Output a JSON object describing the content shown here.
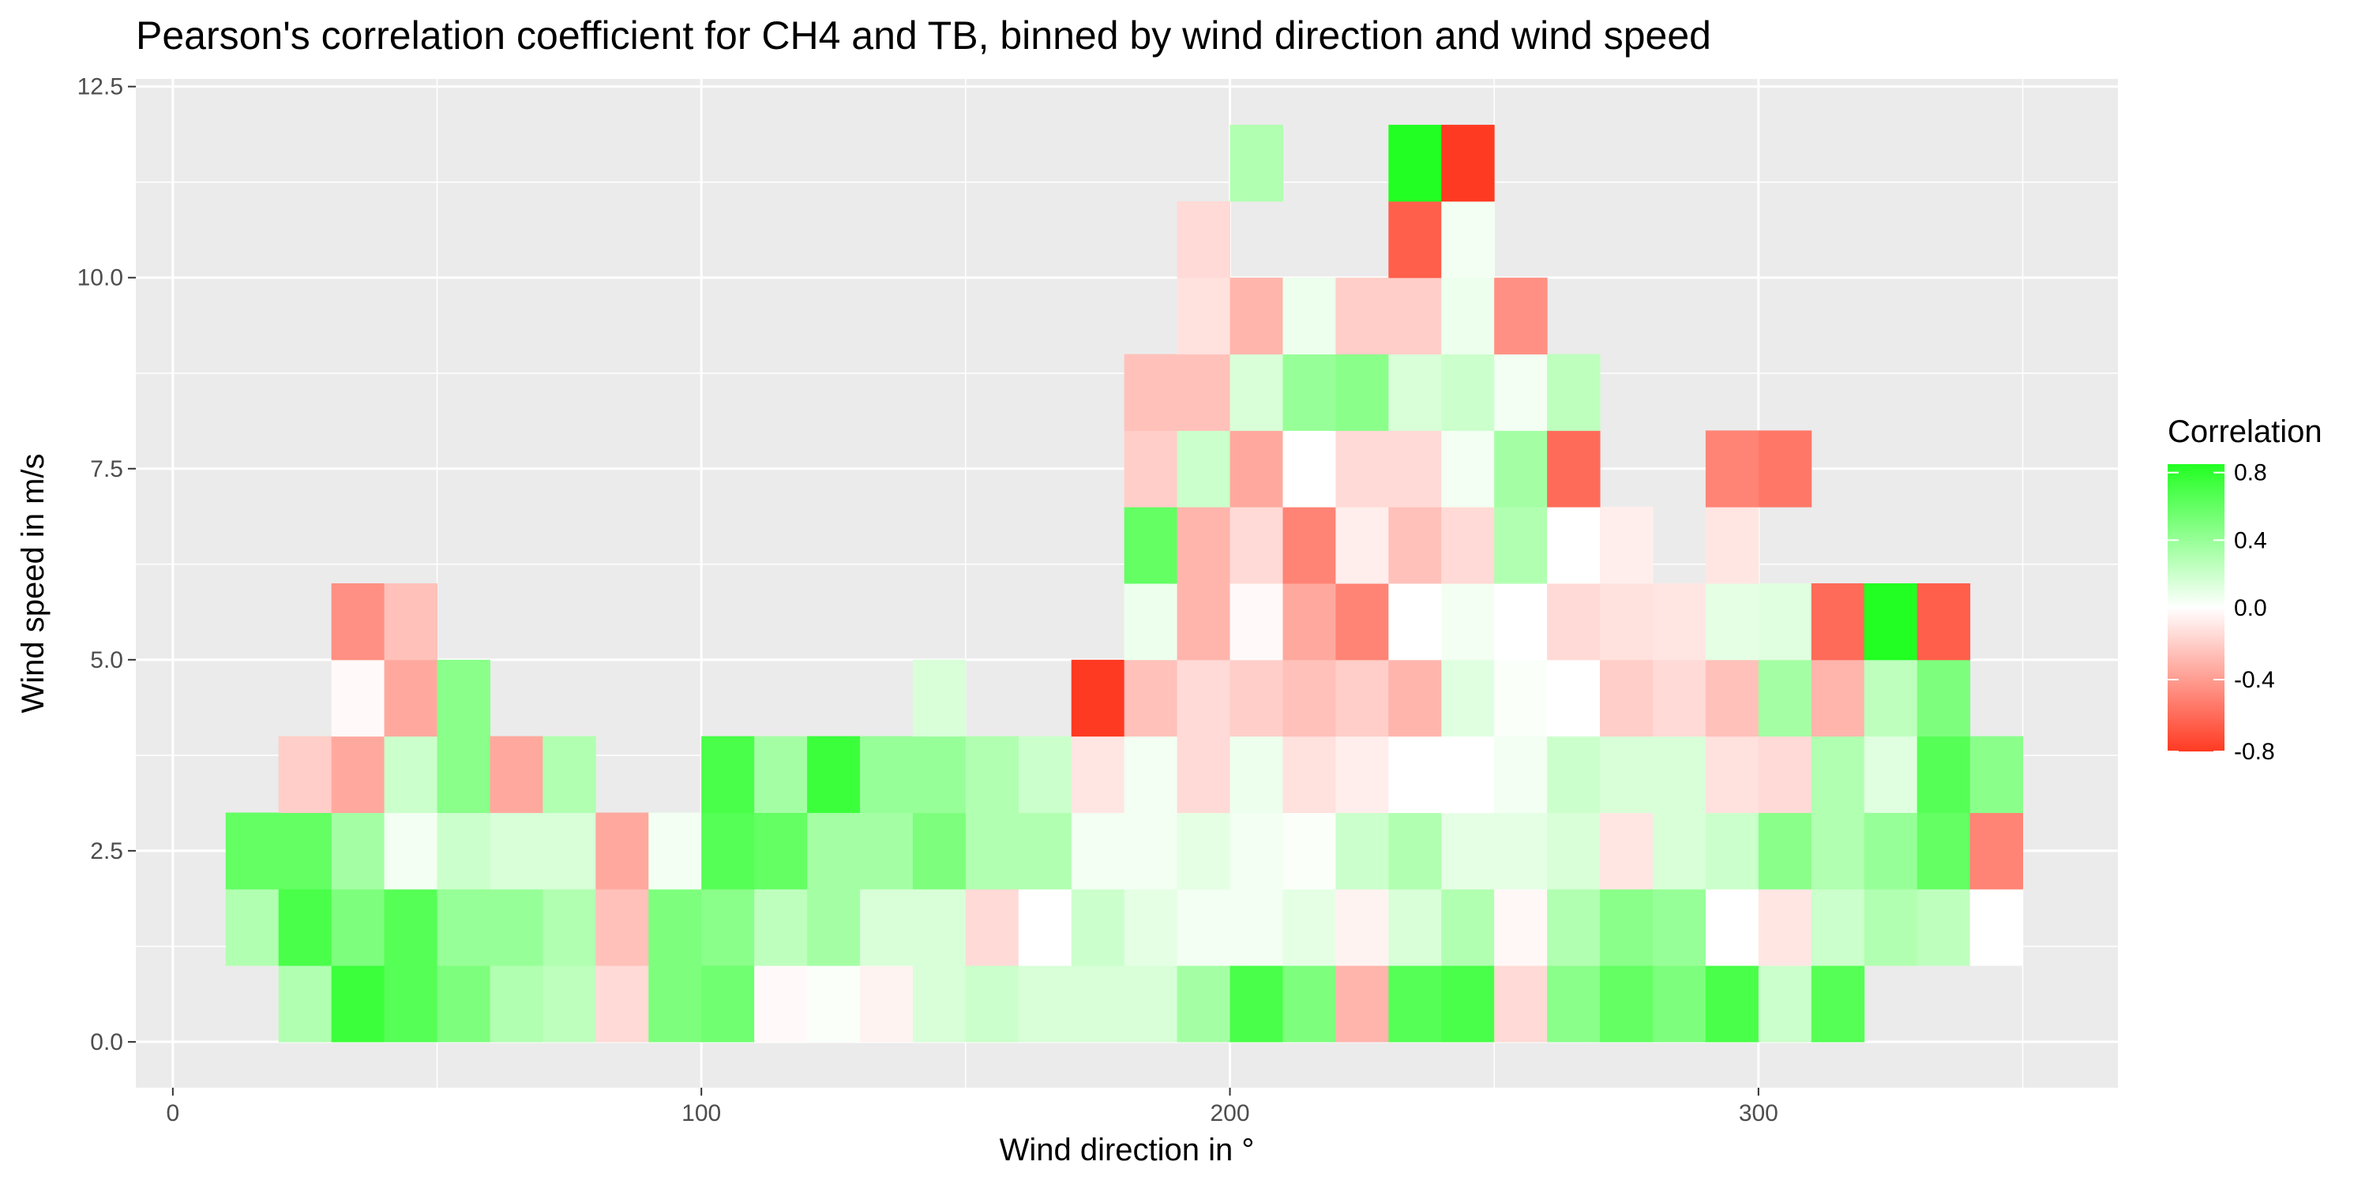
{
  "chart_data": {
    "type": "heatmap",
    "title": "Pearson's correlation coefficient for CH4 and TB, binned by wind direction and wind speed",
    "xlabel": "Wind direction in °",
    "ylabel": "Wind speed in m/s",
    "xlim": [
      -7,
      368
    ],
    "ylim": [
      -0.6,
      12.6
    ],
    "x_ticks": [
      0,
      100,
      200,
      300
    ],
    "x_tick_labels": [
      "0",
      "100",
      "200",
      "300"
    ],
    "y_ticks": [
      0,
      2.5,
      5,
      7.5,
      10,
      12.5
    ],
    "y_tick_labels": [
      "0.0",
      "2.5",
      "5.0",
      "7.5",
      "10.0",
      "12.5"
    ],
    "grid": true,
    "bin_width_x": 10,
    "bin_height_y": 1,
    "legend": {
      "title": "Correlation",
      "position": "right",
      "range": [
        -0.8,
        0.85
      ],
      "ticks": [
        0.8,
        0.4,
        0.0,
        -0.4,
        -0.8
      ],
      "tick_labels": [
        "0.8",
        "0.4",
        "0.0",
        "-0.4",
        "-0.8"
      ],
      "color_low": "#ff3a22",
      "color_mid": "#ffffff",
      "color_high": "#22ff22"
    },
    "cells": [
      [
        25,
        0.5,
        0.3
      ],
      [
        35,
        0.5,
        0.75
      ],
      [
        45,
        0.5,
        0.65
      ],
      [
        55,
        0.5,
        0.5
      ],
      [
        65,
        0.5,
        0.3
      ],
      [
        75,
        0.5,
        0.25
      ],
      [
        85,
        0.5,
        -0.15
      ],
      [
        95,
        0.5,
        0.5
      ],
      [
        105,
        0.5,
        0.55
      ],
      [
        115,
        0.5,
        -0.02
      ],
      [
        125,
        0.5,
        0.02
      ],
      [
        135,
        0.5,
        -0.05
      ],
      [
        145,
        0.5,
        0.15
      ],
      [
        155,
        0.5,
        0.2
      ],
      [
        165,
        0.5,
        0.15
      ],
      [
        175,
        0.5,
        0.15
      ],
      [
        185,
        0.5,
        0.15
      ],
      [
        195,
        0.5,
        0.35
      ],
      [
        205,
        0.5,
        0.7
      ],
      [
        215,
        0.5,
        0.5
      ],
      [
        225,
        0.5,
        -0.3
      ],
      [
        235,
        0.5,
        0.65
      ],
      [
        245,
        0.5,
        0.7
      ],
      [
        255,
        0.5,
        -0.15
      ],
      [
        265,
        0.5,
        0.45
      ],
      [
        275,
        0.5,
        0.6
      ],
      [
        285,
        0.5,
        0.5
      ],
      [
        295,
        0.5,
        0.7
      ],
      [
        305,
        0.5,
        0.2
      ],
      [
        315,
        0.5,
        0.65
      ],
      [
        15,
        1.5,
        0.3
      ],
      [
        25,
        1.5,
        0.7
      ],
      [
        35,
        1.5,
        0.5
      ],
      [
        45,
        1.5,
        0.65
      ],
      [
        55,
        1.5,
        0.4
      ],
      [
        65,
        1.5,
        0.4
      ],
      [
        75,
        1.5,
        0.3
      ],
      [
        85,
        1.5,
        -0.25
      ],
      [
        95,
        1.5,
        0.5
      ],
      [
        105,
        1.5,
        0.45
      ],
      [
        115,
        1.5,
        0.25
      ],
      [
        125,
        1.5,
        0.35
      ],
      [
        135,
        1.5,
        0.15
      ],
      [
        145,
        1.5,
        0.15
      ],
      [
        155,
        1.5,
        -0.15
      ],
      [
        165,
        1.5,
        0.0
      ],
      [
        175,
        1.5,
        0.2
      ],
      [
        185,
        1.5,
        0.1
      ],
      [
        195,
        1.5,
        0.05
      ],
      [
        205,
        1.5,
        0.05
      ],
      [
        215,
        1.5,
        0.1
      ],
      [
        225,
        1.5,
        -0.05
      ],
      [
        235,
        1.5,
        0.15
      ],
      [
        245,
        1.5,
        0.3
      ],
      [
        255,
        1.5,
        -0.03
      ],
      [
        265,
        1.5,
        0.3
      ],
      [
        275,
        1.5,
        0.45
      ],
      [
        285,
        1.5,
        0.4
      ],
      [
        295,
        1.5,
        0.0
      ],
      [
        305,
        1.5,
        -0.1
      ],
      [
        315,
        1.5,
        0.2
      ],
      [
        325,
        1.5,
        0.3
      ],
      [
        335,
        1.5,
        0.25
      ],
      [
        345,
        1.5,
        0.0
      ],
      [
        15,
        2.5,
        0.6
      ],
      [
        25,
        2.5,
        0.6
      ],
      [
        35,
        2.5,
        0.35
      ],
      [
        45,
        2.5,
        0.05
      ],
      [
        55,
        2.5,
        0.2
      ],
      [
        65,
        2.5,
        0.15
      ],
      [
        75,
        2.5,
        0.15
      ],
      [
        85,
        2.5,
        -0.35
      ],
      [
        95,
        2.5,
        0.05
      ],
      [
        105,
        2.5,
        0.65
      ],
      [
        115,
        2.5,
        0.6
      ],
      [
        125,
        2.5,
        0.35
      ],
      [
        135,
        2.5,
        0.35
      ],
      [
        145,
        2.5,
        0.5
      ],
      [
        155,
        2.5,
        0.3
      ],
      [
        165,
        2.5,
        0.3
      ],
      [
        175,
        2.5,
        0.05
      ],
      [
        185,
        2.5,
        0.05
      ],
      [
        195,
        2.5,
        0.1
      ],
      [
        205,
        2.5,
        0.05
      ],
      [
        215,
        2.5,
        0.02
      ],
      [
        225,
        2.5,
        0.2
      ],
      [
        235,
        2.5,
        0.3
      ],
      [
        245,
        2.5,
        0.1
      ],
      [
        255,
        2.5,
        0.1
      ],
      [
        265,
        2.5,
        0.15
      ],
      [
        275,
        2.5,
        -0.1
      ],
      [
        285,
        2.5,
        0.15
      ],
      [
        295,
        2.5,
        0.2
      ],
      [
        305,
        2.5,
        0.45
      ],
      [
        315,
        2.5,
        0.3
      ],
      [
        325,
        2.5,
        0.4
      ],
      [
        335,
        2.5,
        0.6
      ],
      [
        345,
        2.5,
        -0.5
      ],
      [
        25,
        3.5,
        -0.2
      ],
      [
        35,
        3.5,
        -0.35
      ],
      [
        45,
        3.5,
        0.2
      ],
      [
        55,
        3.5,
        0.45
      ],
      [
        65,
        3.5,
        -0.35
      ],
      [
        75,
        3.5,
        0.3
      ],
      [
        105,
        3.5,
        0.7
      ],
      [
        115,
        3.5,
        0.35
      ],
      [
        125,
        3.5,
        0.75
      ],
      [
        135,
        3.5,
        0.4
      ],
      [
        145,
        3.5,
        0.4
      ],
      [
        155,
        3.5,
        0.3
      ],
      [
        165,
        3.5,
        0.2
      ],
      [
        175,
        3.5,
        -0.1
      ],
      [
        185,
        3.5,
        0.05
      ],
      [
        195,
        3.5,
        -0.15
      ],
      [
        205,
        3.5,
        0.07
      ],
      [
        215,
        3.5,
        -0.12
      ],
      [
        225,
        3.5,
        -0.07
      ],
      [
        235,
        3.5,
        0.0
      ],
      [
        245,
        3.5,
        0.0
      ],
      [
        255,
        3.5,
        0.05
      ],
      [
        265,
        3.5,
        0.2
      ],
      [
        275,
        3.5,
        0.15
      ],
      [
        285,
        3.5,
        0.15
      ],
      [
        295,
        3.5,
        -0.12
      ],
      [
        305,
        3.5,
        -0.15
      ],
      [
        315,
        3.5,
        0.3
      ],
      [
        325,
        3.5,
        0.12
      ],
      [
        335,
        3.5,
        0.65
      ],
      [
        345,
        3.5,
        0.45
      ],
      [
        35,
        4.5,
        -0.02
      ],
      [
        45,
        4.5,
        -0.35
      ],
      [
        55,
        4.5,
        0.45
      ],
      [
        145,
        4.5,
        0.15
      ],
      [
        175,
        4.5,
        -0.85
      ],
      [
        185,
        4.5,
        -0.25
      ],
      [
        195,
        4.5,
        -0.15
      ],
      [
        205,
        4.5,
        -0.2
      ],
      [
        215,
        4.5,
        -0.25
      ],
      [
        225,
        4.5,
        -0.2
      ],
      [
        235,
        4.5,
        -0.3
      ],
      [
        245,
        4.5,
        0.12
      ],
      [
        255,
        4.5,
        0.02
      ],
      [
        265,
        4.5,
        0.0
      ],
      [
        275,
        4.5,
        -0.2
      ],
      [
        285,
        4.5,
        -0.15
      ],
      [
        295,
        4.5,
        -0.25
      ],
      [
        305,
        4.5,
        0.35
      ],
      [
        315,
        4.5,
        -0.3
      ],
      [
        325,
        4.5,
        0.25
      ],
      [
        335,
        4.5,
        0.5
      ],
      [
        35,
        5.5,
        -0.45
      ],
      [
        45,
        5.5,
        -0.25
      ],
      [
        185,
        5.5,
        0.07
      ],
      [
        195,
        5.5,
        -0.3
      ],
      [
        205,
        5.5,
        -0.02
      ],
      [
        215,
        5.5,
        -0.35
      ],
      [
        225,
        5.5,
        -0.5
      ],
      [
        235,
        5.5,
        0.0
      ],
      [
        245,
        5.5,
        0.05
      ],
      [
        255,
        5.5,
        0.0
      ],
      [
        265,
        5.5,
        -0.15
      ],
      [
        275,
        5.5,
        -0.12
      ],
      [
        285,
        5.5,
        -0.1
      ],
      [
        295,
        5.5,
        0.1
      ],
      [
        305,
        5.5,
        0.12
      ],
      [
        315,
        5.5,
        -0.6
      ],
      [
        325,
        5.5,
        0.85
      ],
      [
        335,
        5.5,
        -0.65
      ],
      [
        185,
        6.5,
        0.6
      ],
      [
        195,
        6.5,
        -0.3
      ],
      [
        205,
        6.5,
        -0.15
      ],
      [
        215,
        6.5,
        -0.5
      ],
      [
        225,
        6.5,
        -0.07
      ],
      [
        235,
        6.5,
        -0.25
      ],
      [
        245,
        6.5,
        -0.15
      ],
      [
        255,
        6.5,
        0.3
      ],
      [
        265,
        6.5,
        0.0
      ],
      [
        275,
        6.5,
        -0.07
      ],
      [
        295,
        6.5,
        -0.1
      ],
      [
        185,
        7.5,
        -0.2
      ],
      [
        195,
        7.5,
        0.2
      ],
      [
        205,
        7.5,
        -0.35
      ],
      [
        215,
        7.5,
        0.0
      ],
      [
        225,
        7.5,
        -0.15
      ],
      [
        235,
        7.5,
        -0.15
      ],
      [
        245,
        7.5,
        0.05
      ],
      [
        255,
        7.5,
        0.35
      ],
      [
        265,
        7.5,
        -0.6
      ],
      [
        295,
        7.5,
        -0.5
      ],
      [
        305,
        7.5,
        -0.55
      ],
      [
        185,
        8.5,
        -0.25
      ],
      [
        195,
        8.5,
        -0.25
      ],
      [
        205,
        8.5,
        0.15
      ],
      [
        215,
        8.5,
        0.4
      ],
      [
        225,
        8.5,
        0.45
      ],
      [
        235,
        8.5,
        0.15
      ],
      [
        245,
        8.5,
        0.2
      ],
      [
        255,
        8.5,
        0.05
      ],
      [
        265,
        8.5,
        0.25
      ],
      [
        195,
        9.5,
        -0.12
      ],
      [
        205,
        9.5,
        -0.3
      ],
      [
        215,
        9.5,
        0.07
      ],
      [
        225,
        9.5,
        -0.2
      ],
      [
        235,
        9.5,
        -0.2
      ],
      [
        245,
        9.5,
        0.07
      ],
      [
        255,
        9.5,
        -0.45
      ],
      [
        195,
        10.5,
        -0.15
      ],
      [
        235,
        10.5,
        -0.65
      ],
      [
        245,
        10.5,
        0.05
      ],
      [
        205,
        11.5,
        0.3
      ],
      [
        235,
        11.5,
        0.85
      ],
      [
        245,
        11.5,
        -0.8
      ]
    ]
  }
}
